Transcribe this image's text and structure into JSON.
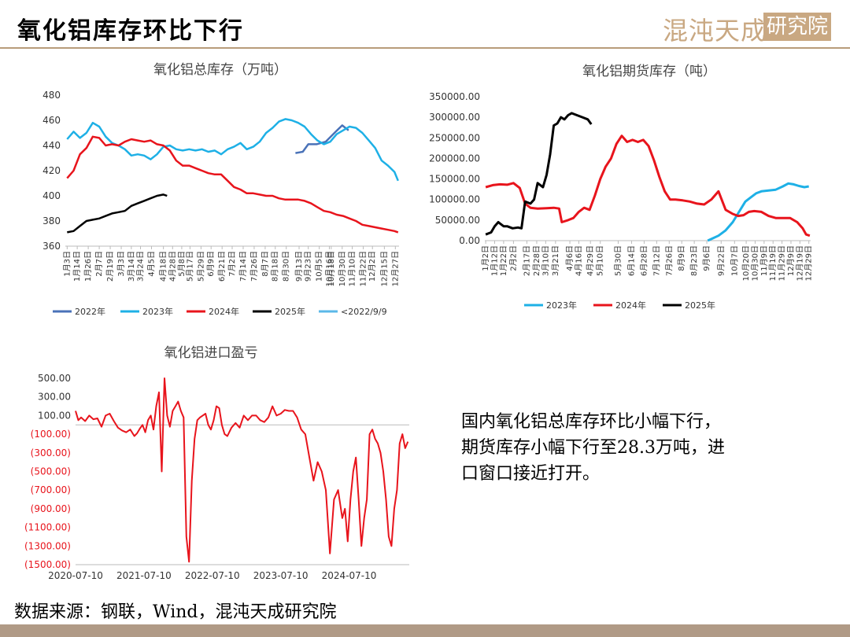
{
  "slide": {
    "title": "氧化铝库存环比下行",
    "logo_text": "混沌天成",
    "logo_boxed": "研究院",
    "summary_lines": [
      "国内氧化铝总库存环比小幅下行，",
      "期货库存小幅下行至28.3万吨，进",
      "口窗口接近打开。"
    ],
    "source": "数据来源：钢联，Wind，混沌天成研究院"
  },
  "chart_data": [
    {
      "type": "line",
      "title": "氧化铝总库存（万吨）",
      "ylim": [
        360,
        480
      ],
      "yticks": [
        360,
        380,
        400,
        420,
        440,
        460,
        480
      ],
      "x_range": [
        1,
        365
      ],
      "x_ticks": [
        {
          "x": 3,
          "label": "1月3日"
        },
        {
          "x": 14,
          "label": "1月14日"
        },
        {
          "x": 26,
          "label": "1月26日"
        },
        {
          "x": 38,
          "label": "2月7日"
        },
        {
          "x": 50,
          "label": "2月19日"
        },
        {
          "x": 62,
          "label": "3月3日"
        },
        {
          "x": 73,
          "label": "3月14日"
        },
        {
          "x": 83,
          "label": "3月24日"
        },
        {
          "x": 95,
          "label": "4月5日"
        },
        {
          "x": 108,
          "label": "4月18日"
        },
        {
          "x": 118,
          "label": "4月28日"
        },
        {
          "x": 128,
          "label": "5月8日"
        },
        {
          "x": 137,
          "label": "5月17日"
        },
        {
          "x": 149,
          "label": "5月29日"
        },
        {
          "x": 160,
          "label": "6月9日"
        },
        {
          "x": 172,
          "label": "6月21日"
        },
        {
          "x": 183,
          "label": "7月2日"
        },
        {
          "x": 195,
          "label": "7月14日"
        },
        {
          "x": 207,
          "label": "7月26日"
        },
        {
          "x": 219,
          "label": "8月7日"
        },
        {
          "x": 230,
          "label": "8月18日"
        },
        {
          "x": 242,
          "label": "8月30日"
        },
        {
          "x": 256,
          "label": "9月13日"
        },
        {
          "x": 266,
          "label": "9月23日"
        },
        {
          "x": 278,
          "label": "10月5日"
        },
        {
          "x": 289,
          "label": "10月16日"
        },
        {
          "x": 291,
          "label": "10月18日"
        },
        {
          "x": 303,
          "label": "10月30日"
        },
        {
          "x": 314,
          "label": "11月10日"
        },
        {
          "x": 326,
          "label": "11月22日"
        },
        {
          "x": 336,
          "label": "12月2日"
        },
        {
          "x": 349,
          "label": "12月15日"
        },
        {
          "x": 361,
          "label": "12月27日"
        }
      ],
      "legend": [
        "2022年",
        "2023年",
        "2024年",
        "2025年",
        "<2022/9/9"
      ],
      "series": [
        {
          "name": "2022年",
          "color": "#4a72b8",
          "x": [
            252,
            260,
            266,
            275,
            285,
            296,
            303,
            310
          ],
          "y": [
            434,
            435,
            441,
            441,
            443,
            451,
            456,
            452
          ]
        },
        {
          "name": "2023年",
          "color": "#1eb0e6",
          "x": [
            3,
            10,
            17,
            24,
            31,
            38,
            45,
            52,
            59,
            66,
            73,
            80,
            87,
            94,
            101,
            108,
            115,
            122,
            129,
            136,
            143,
            150,
            157,
            164,
            171,
            178,
            185,
            192,
            199,
            206,
            213,
            220,
            227,
            234,
            241,
            248,
            255,
            262,
            269,
            276,
            283,
            290,
            297,
            304,
            311,
            318,
            325,
            332,
            339,
            346,
            353,
            360,
            364
          ],
          "y": [
            445,
            451,
            446,
            450,
            458,
            455,
            447,
            442,
            440,
            437,
            432,
            433,
            432,
            429,
            433,
            439,
            440,
            437,
            436,
            437,
            436,
            437,
            435,
            436,
            433,
            437,
            439,
            442,
            437,
            439,
            443,
            450,
            454,
            459,
            461,
            460,
            458,
            455,
            449,
            444,
            441,
            443,
            449,
            452,
            455,
            454,
            450,
            444,
            438,
            428,
            424,
            419,
            412
          ]
        },
        {
          "name": "2024年",
          "color": "#e8141c",
          "x": [
            3,
            10,
            17,
            24,
            31,
            38,
            45,
            52,
            59,
            66,
            73,
            80,
            87,
            94,
            101,
            108,
            115,
            122,
            129,
            136,
            143,
            150,
            157,
            164,
            171,
            178,
            185,
            192,
            199,
            206,
            213,
            220,
            227,
            234,
            241,
            248,
            255,
            262,
            269,
            276,
            283,
            290,
            297,
            304,
            311,
            318,
            325,
            332,
            339,
            346,
            353,
            360,
            364
          ],
          "y": [
            414,
            420,
            433,
            438,
            447,
            446,
            440,
            441,
            440,
            443,
            445,
            444,
            443,
            444,
            441,
            440,
            436,
            428,
            424,
            424,
            422,
            420,
            418,
            417,
            417,
            412,
            407,
            405,
            402,
            402,
            401,
            400,
            400,
            398,
            397,
            397,
            397,
            396,
            394,
            391,
            388,
            387,
            385,
            384,
            382,
            380,
            377,
            376,
            375,
            374,
            373,
            372,
            371
          ]
        },
        {
          "name": "2025年",
          "color": "#000000",
          "x": [
            3,
            10,
            17,
            24,
            31,
            38,
            45,
            52,
            59,
            66,
            73,
            80,
            87,
            94,
            101,
            108,
            112
          ],
          "y": [
            371,
            372,
            376,
            380,
            381,
            382,
            384,
            386,
            387,
            388,
            392,
            394,
            396,
            398,
            400,
            401,
            400
          ]
        }
      ]
    },
    {
      "type": "line",
      "title": "氧化铝期货库存（吨）",
      "ylim": [
        0,
        350000
      ],
      "yticks": [
        0,
        50000,
        100000,
        150000,
        200000,
        250000,
        300000,
        350000
      ],
      "ytick_labels": [
        "0.00",
        "50000.00",
        "100000.00",
        "150000.00",
        "200000.00",
        "250000.00",
        "300000.00",
        "350000.00"
      ],
      "x_range": [
        1,
        365
      ],
      "x_ticks": [
        {
          "x": 2,
          "label": "1月2日"
        },
        {
          "x": 12,
          "label": "1月12日"
        },
        {
          "x": 22,
          "label": "1月22日"
        },
        {
          "x": 33,
          "label": "2月2日"
        },
        {
          "x": 48,
          "label": "2月17日"
        },
        {
          "x": 59,
          "label": "2月28日"
        },
        {
          "x": 69,
          "label": "3月10日"
        },
        {
          "x": 80,
          "label": "3月21日"
        },
        {
          "x": 96,
          "label": "4月6日"
        },
        {
          "x": 106,
          "label": "4月16日"
        },
        {
          "x": 119,
          "label": "4月29日"
        },
        {
          "x": 130,
          "label": "5月10日"
        },
        {
          "x": 150,
          "label": "5月30日"
        },
        {
          "x": 165,
          "label": "6月14日"
        },
        {
          "x": 179,
          "label": "6月28日"
        },
        {
          "x": 193,
          "label": "7月12日"
        },
        {
          "x": 207,
          "label": "7月26日"
        },
        {
          "x": 221,
          "label": "8月9日"
        },
        {
          "x": 235,
          "label": "8月23日"
        },
        {
          "x": 249,
          "label": "9月6日"
        },
        {
          "x": 265,
          "label": "9月22日"
        },
        {
          "x": 280,
          "label": "10月7日"
        },
        {
          "x": 293,
          "label": "10月20日"
        },
        {
          "x": 303,
          "label": "10月30日"
        },
        {
          "x": 313,
          "label": "11月9日"
        },
        {
          "x": 323,
          "label": "11月19日"
        },
        {
          "x": 333,
          "label": "11月29日"
        },
        {
          "x": 343,
          "label": "12月9日"
        },
        {
          "x": 353,
          "label": "12月19日"
        },
        {
          "x": 363,
          "label": "12月29日"
        }
      ],
      "legend": [
        "2023年",
        "2024年",
        "2025年"
      ],
      "series": [
        {
          "name": "2023年",
          "color": "#1eb0e6",
          "x": [
            250,
            255,
            262,
            270,
            278,
            285,
            292,
            298,
            304,
            310,
            318,
            326,
            334,
            340,
            346,
            352,
            358,
            363
          ],
          "y": [
            0,
            5000,
            12000,
            25000,
            45000,
            70000,
            95000,
            105000,
            115000,
            120000,
            122000,
            124000,
            132000,
            139000,
            137000,
            133000,
            130000,
            132000
          ]
        },
        {
          "name": "2024年",
          "color": "#e8141c",
          "x": [
            2,
            10,
            18,
            26,
            33,
            40,
            46,
            52,
            60,
            70,
            78,
            84,
            87,
            94,
            100,
            106,
            112,
            118,
            124,
            130,
            136,
            142,
            148,
            154,
            160,
            166,
            172,
            178,
            184,
            190,
            196,
            202,
            208,
            214,
            222,
            230,
            238,
            246,
            254,
            262,
            270,
            278,
            284,
            290,
            296,
            302,
            310,
            318,
            326,
            334,
            342,
            350,
            356,
            360,
            364
          ],
          "y": [
            130000,
            135000,
            137000,
            136000,
            140000,
            128000,
            90000,
            80000,
            78000,
            79000,
            80000,
            78000,
            45000,
            50000,
            55000,
            70000,
            80000,
            75000,
            110000,
            150000,
            180000,
            200000,
            235000,
            255000,
            240000,
            245000,
            240000,
            245000,
            230000,
            195000,
            155000,
            120000,
            100000,
            100000,
            98000,
            95000,
            90000,
            88000,
            100000,
            120000,
            75000,
            65000,
            60000,
            62000,
            70000,
            72000,
            70000,
            60000,
            55000,
            55000,
            55000,
            45000,
            30000,
            15000,
            12000
          ]
        },
        {
          "name": "2025年",
          "color": "#000000",
          "x": [
            2,
            8,
            12,
            16,
            22,
            26,
            32,
            38,
            42,
            46,
            52,
            56,
            60,
            66,
            70,
            74,
            78,
            82,
            86,
            90,
            94,
            98,
            104,
            110,
            116,
            120
          ],
          "y": [
            15000,
            20000,
            35000,
            45000,
            35000,
            35000,
            30000,
            32000,
            30000,
            95000,
            90000,
            100000,
            140000,
            130000,
            160000,
            210000,
            280000,
            285000,
            300000,
            295000,
            305000,
            310000,
            305000,
            300000,
            295000,
            283000
          ]
        }
      ]
    },
    {
      "type": "line",
      "title": "氧化铝进口盈亏",
      "ylim": [
        -1500,
        500
      ],
      "yticks": [
        -1500,
        -1300,
        -1100,
        -900,
        -700,
        -500,
        -300,
        -100,
        100,
        300,
        500
      ],
      "ytick_labels": [
        "(1500.00)",
        "(1300.00)",
        "(1100.00)",
        "(900.00)",
        "(700.00)",
        "(500.00)",
        "(300.00)",
        "(100.00)",
        "100.00",
        "300.00",
        "500.00"
      ],
      "x_range": [
        2020.52,
        2025.4
      ],
      "x_ticks": [
        {
          "x": 2020.52,
          "label": "2020-07-10"
        },
        {
          "x": 2021.52,
          "label": "2021-07-10"
        },
        {
          "x": 2022.52,
          "label": "2022-07-10"
        },
        {
          "x": 2023.52,
          "label": "2023-07-10"
        },
        {
          "x": 2024.52,
          "label": "2024-07-10"
        }
      ],
      "series": [
        {
          "color": "#e8141c",
          "x": [
            2020.52,
            2020.56,
            2020.6,
            2020.66,
            2020.72,
            2020.78,
            2020.84,
            2020.9,
            2020.96,
            2021.02,
            2021.08,
            2021.14,
            2021.2,
            2021.26,
            2021.32,
            2021.38,
            2021.42,
            2021.46,
            2021.5,
            2021.54,
            2021.58,
            2021.62,
            2021.66,
            2021.7,
            2021.74,
            2021.78,
            2021.82,
            2021.86,
            2021.9,
            2021.94,
            2021.98,
            2022.02,
            2022.06,
            2022.1,
            2022.14,
            2022.18,
            2022.22,
            2022.26,
            2022.3,
            2022.34,
            2022.38,
            2022.42,
            2022.46,
            2022.5,
            2022.54,
            2022.58,
            2022.62,
            2022.66,
            2022.7,
            2022.74,
            2022.8,
            2022.86,
            2022.92,
            2022.98,
            2023.04,
            2023.1,
            2023.16,
            2023.22,
            2023.28,
            2023.34,
            2023.4,
            2023.46,
            2023.52,
            2023.58,
            2023.64,
            2023.7,
            2023.76,
            2023.82,
            2023.88,
            2023.94,
            2024.0,
            2024.06,
            2024.12,
            2024.18,
            2024.24,
            2024.3,
            2024.36,
            2024.42,
            2024.46,
            2024.5,
            2024.54,
            2024.58,
            2024.62,
            2024.66,
            2024.7,
            2024.74,
            2024.78,
            2024.82,
            2024.86,
            2024.9,
            2024.94,
            2024.98,
            2025.02,
            2025.06,
            2025.1,
            2025.14,
            2025.18,
            2025.22,
            2025.26,
            2025.3,
            2025.34,
            2025.38
          ],
          "y": [
            150,
            50,
            80,
            40,
            100,
            60,
            70,
            -20,
            100,
            120,
            40,
            -30,
            -60,
            -80,
            -50,
            -120,
            -90,
            -40,
            0,
            -80,
            50,
            100,
            -50,
            200,
            350,
            -500,
            500,
            100,
            -20,
            150,
            200,
            250,
            150,
            80,
            -1200,
            -1470,
            -600,
            -150,
            50,
            80,
            100,
            120,
            0,
            -50,
            50,
            200,
            180,
            0,
            -100,
            -120,
            -30,
            20,
            -30,
            100,
            50,
            100,
            100,
            50,
            30,
            80,
            200,
            100,
            120,
            160,
            150,
            150,
            80,
            -50,
            -100,
            -350,
            -600,
            -400,
            -500,
            -700,
            -1380,
            -800,
            -700,
            -1000,
            -900,
            -1250,
            -800,
            -500,
            -350,
            -800,
            -1300,
            -1000,
            -800,
            -100,
            -50,
            -150,
            -200,
            -300,
            -500,
            -800,
            -1200,
            -1300,
            -900,
            -700,
            -200,
            -100,
            -250,
            -180
          ]
        }
      ]
    }
  ]
}
